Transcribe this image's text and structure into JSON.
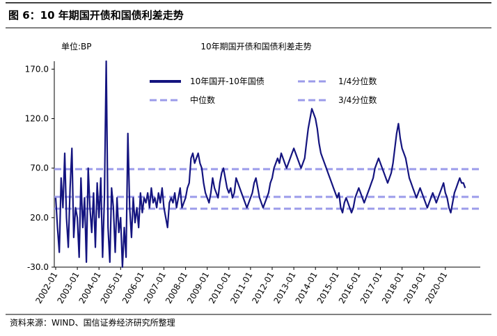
{
  "chart_data": {
    "type": "line",
    "header": "图 6：10 年期国开债和国债利差走势",
    "unit": "单位:BP",
    "title": "10年期国开债和国债利差走势",
    "source": "资料来源：WIND、国信证券经济研究所整理",
    "x": [
      "2002-01",
      "2002-02",
      "2002-03",
      "2002-04",
      "2002-05",
      "2002-06",
      "2002-07",
      "2002-08",
      "2002-09",
      "2002-10",
      "2002-11",
      "2002-12",
      "2003-01",
      "2003-02",
      "2003-03",
      "2003-04",
      "2003-05",
      "2003-06",
      "2003-07",
      "2003-08",
      "2003-09",
      "2003-10",
      "2003-11",
      "2003-12",
      "2004-01",
      "2004-02",
      "2004-03",
      "2004-04",
      "2004-05",
      "2004-06",
      "2004-07",
      "2004-08",
      "2004-09",
      "2004-10",
      "2004-11",
      "2004-12",
      "2005-01",
      "2005-02",
      "2005-03",
      "2005-04",
      "2005-05",
      "2005-06",
      "2005-07",
      "2005-08",
      "2005-09",
      "2005-10",
      "2005-11",
      "2005-12",
      "2006-01",
      "2006-02",
      "2006-03",
      "2006-04",
      "2006-05",
      "2006-06",
      "2006-07",
      "2006-08",
      "2006-09",
      "2006-10",
      "2006-11",
      "2006-12",
      "2007-01",
      "2007-02",
      "2007-03",
      "2007-04",
      "2007-05",
      "2007-06",
      "2007-07",
      "2007-08",
      "2007-09",
      "2007-10",
      "2007-11",
      "2007-12",
      "2008-01",
      "2008-02",
      "2008-03",
      "2008-04",
      "2008-05",
      "2008-06",
      "2008-07",
      "2008-08",
      "2008-09",
      "2008-10",
      "2008-11",
      "2008-12",
      "2009-01",
      "2009-02",
      "2009-03",
      "2009-04",
      "2009-05",
      "2009-06",
      "2009-07",
      "2009-08",
      "2009-09",
      "2009-10",
      "2009-11",
      "2009-12",
      "2010-01",
      "2010-02",
      "2010-03",
      "2010-04",
      "2010-05",
      "2010-06",
      "2010-07",
      "2010-08",
      "2010-09",
      "2010-10",
      "2010-11",
      "2010-12",
      "2011-01",
      "2011-02",
      "2011-03",
      "2011-04",
      "2011-05",
      "2011-06",
      "2011-07",
      "2011-08",
      "2011-09",
      "2011-10",
      "2011-11",
      "2011-12",
      "2012-01",
      "2012-02",
      "2012-03",
      "2012-04",
      "2012-05",
      "2012-06",
      "2012-07",
      "2012-08",
      "2012-09",
      "2012-10",
      "2012-11",
      "2012-12",
      "2013-01",
      "2013-02",
      "2013-03",
      "2013-04",
      "2013-05",
      "2013-06",
      "2013-07",
      "2013-08",
      "2013-09",
      "2013-10",
      "2013-11",
      "2013-12",
      "2014-01",
      "2014-02",
      "2014-03",
      "2014-04",
      "2014-05",
      "2014-06",
      "2014-07",
      "2014-08",
      "2014-09",
      "2014-10",
      "2014-11",
      "2014-12",
      "2015-01",
      "2015-02",
      "2015-03",
      "2015-04",
      "2015-05",
      "2015-06",
      "2015-07",
      "2015-08",
      "2015-09",
      "2015-10",
      "2015-11",
      "2015-12",
      "2016-01",
      "2016-02",
      "2016-03",
      "2016-04",
      "2016-05",
      "2016-06",
      "2016-07",
      "2016-08",
      "2016-09",
      "2016-10",
      "2016-11",
      "2016-12",
      "2017-01",
      "2017-02",
      "2017-03",
      "2017-04",
      "2017-05",
      "2017-06",
      "2017-07",
      "2017-08",
      "2017-09",
      "2017-10",
      "2017-11",
      "2017-12",
      "2018-01",
      "2018-02",
      "2018-03",
      "2018-04",
      "2018-05",
      "2018-06",
      "2018-07",
      "2018-08",
      "2018-09",
      "2018-10",
      "2018-11",
      "2018-12",
      "2019-01",
      "2019-02",
      "2019-03",
      "2019-04",
      "2019-05",
      "2019-06",
      "2019-07",
      "2019-08",
      "2019-09",
      "2019-10",
      "2019-11",
      "2019-12",
      "2020-01",
      "2020-02",
      "2020-03",
      "2020-04",
      "2020-05",
      "2020-06",
      "2020-07",
      "2020-08",
      "2020-09",
      "2020-10",
      "2020-11",
      "2020-12"
    ],
    "series": [
      {
        "name": "10年国开-10年国债",
        "color": "#14147f",
        "values": [
          40,
          10,
          -15,
          60,
          30,
          85,
          20,
          -10,
          50,
          90,
          0,
          30,
          20,
          -20,
          60,
          10,
          40,
          -25,
          70,
          30,
          5,
          45,
          -10,
          55,
          20,
          60,
          -20,
          40,
          178,
          10,
          -25,
          50,
          30,
          -15,
          40,
          5,
          20,
          -30,
          10,
          -20,
          105,
          30,
          0,
          40,
          15,
          30,
          10,
          45,
          25,
          40,
          35,
          45,
          30,
          50,
          35,
          40,
          30,
          45,
          35,
          50,
          30,
          20,
          10,
          35,
          40,
          35,
          45,
          30,
          40,
          50,
          30,
          35,
          40,
          50,
          55,
          80,
          85,
          75,
          80,
          85,
          75,
          70,
          55,
          45,
          40,
          35,
          45,
          60,
          50,
          45,
          40,
          55,
          65,
          70,
          60,
          50,
          45,
          50,
          40,
          45,
          60,
          55,
          50,
          45,
          40,
          35,
          30,
          35,
          40,
          45,
          55,
          60,
          50,
          40,
          35,
          30,
          35,
          40,
          45,
          55,
          60,
          70,
          75,
          80,
          75,
          85,
          80,
          75,
          70,
          75,
          80,
          85,
          90,
          85,
          80,
          75,
          70,
          75,
          80,
          95,
          110,
          120,
          130,
          125,
          120,
          110,
          95,
          85,
          80,
          75,
          70,
          65,
          60,
          55,
          50,
          45,
          40,
          45,
          30,
          25,
          35,
          40,
          35,
          30,
          25,
          30,
          40,
          45,
          50,
          45,
          40,
          35,
          40,
          45,
          50,
          55,
          60,
          70,
          75,
          80,
          75,
          70,
          65,
          60,
          55,
          60,
          65,
          75,
          90,
          105,
          115,
          100,
          90,
          85,
          80,
          70,
          60,
          55,
          50,
          45,
          40,
          45,
          50,
          45,
          40,
          35,
          30,
          35,
          40,
          45,
          40,
          35,
          40,
          45,
          50,
          55,
          45,
          40,
          30,
          25,
          35,
          45,
          50,
          55,
          60,
          55,
          55,
          50
        ]
      }
    ],
    "hlines": [
      {
        "name": "1/4分位数",
        "value": 29,
        "color": "#9b9bea"
      },
      {
        "name": "中位数",
        "value": 41,
        "color": "#9b9bea"
      },
      {
        "name": "3/4分位数",
        "value": 69,
        "color": "#9b9bea"
      }
    ],
    "ylim": [
      -30,
      178
    ],
    "yticks": [
      {
        "value": -30,
        "label": "-30.0"
      },
      {
        "value": 20,
        "label": "20.0"
      },
      {
        "value": 70,
        "label": "70.0"
      },
      {
        "value": 120,
        "label": "120.0"
      },
      {
        "value": 170,
        "label": "170.0"
      }
    ],
    "xticks": [
      "2002-01",
      "2003-01",
      "2004-01",
      "2005-01",
      "2006-01",
      "2007-01",
      "2008-01",
      "2009-01",
      "2010-01",
      "2011-01",
      "2012-01",
      "2013-01",
      "2014-01",
      "2015-01",
      "2016-01",
      "2017-01",
      "2018-01",
      "2019-01",
      "2020-01"
    ]
  }
}
